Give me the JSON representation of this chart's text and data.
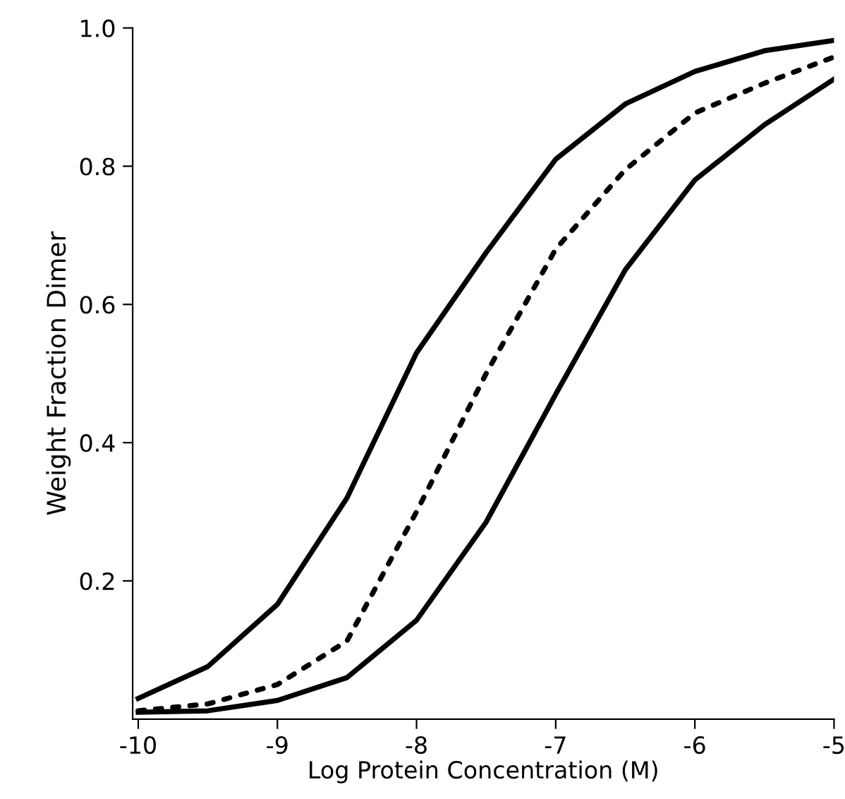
{
  "chart_data": {
    "type": "line",
    "xlabel": "Log Protein Concentration (M)",
    "ylabel": "Weight Fraction Dimer",
    "x": [
      -10,
      -9.5,
      -9,
      -8.5,
      -8,
      -7.5,
      -7,
      -6.5,
      -6,
      -5.5,
      -5
    ],
    "series": [
      {
        "color": "#000000",
        "line_style": "solid",
        "values": [
          0.03,
          0.076,
          0.166,
          0.32,
          0.53,
          0.675,
          0.81,
          0.89,
          0.937,
          0.967,
          0.982
        ]
      },
      {
        "color": "#000000",
        "line_style": "dotted",
        "values": [
          0.012,
          0.022,
          0.05,
          0.113,
          0.3,
          0.5,
          0.68,
          0.795,
          0.877,
          0.92,
          0.958
        ]
      },
      {
        "color": "#000000",
        "line_style": "solid",
        "values": [
          0.01,
          0.012,
          0.027,
          0.06,
          0.143,
          0.285,
          0.47,
          0.65,
          0.78,
          0.86,
          0.926
        ]
      }
    ],
    "xlim": [
      -10.04,
      -5
    ],
    "ylim": [
      0,
      1.0
    ],
    "xticks": [
      {
        "value": -10,
        "label": "-10"
      },
      {
        "value": -9,
        "label": "-9"
      },
      {
        "value": -8,
        "label": "-8"
      },
      {
        "value": -7,
        "label": "-7"
      },
      {
        "value": -6,
        "label": "-6"
      },
      {
        "value": -5,
        "label": "-5"
      }
    ],
    "yticks": [
      {
        "value": 0.2,
        "label": "0.2"
      },
      {
        "value": 0.4,
        "label": "0.4"
      },
      {
        "value": 0.6,
        "label": "0.6"
      },
      {
        "value": 0.8,
        "label": "0.8"
      },
      {
        "value": 1.0,
        "label": "1.0"
      }
    ],
    "grid": false,
    "legend": false,
    "marker": "none"
  }
}
